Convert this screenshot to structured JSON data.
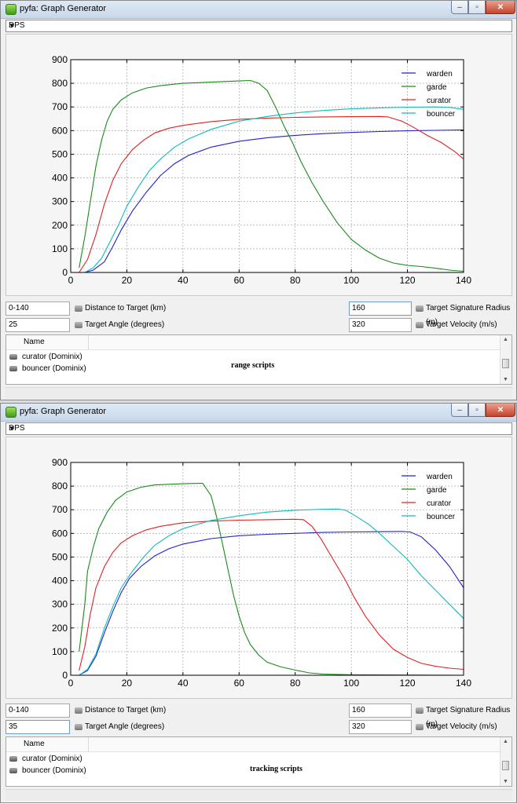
{
  "windows": [
    {
      "title": "pyfa: Graph Generator",
      "mode": "DPS",
      "distance_value": "0-140",
      "distance_label": "Distance to Target (km)",
      "angle_value": "25",
      "angle_label": "Target Angle (degrees)",
      "signature_value": "160",
      "signature_label": "Target Signature Radius (m)",
      "velocity_value": "320",
      "velocity_label": "Target Velocity (m/s)",
      "list_header": "Name",
      "fits": [
        "curator (Dominix)",
        "bouncer (Dominix)"
      ],
      "annotation": "range scripts",
      "focused_field": "signature",
      "chart_data": {
        "type": "line",
        "xlim": [
          0,
          140
        ],
        "ylim": [
          0,
          900
        ],
        "xticks": [
          0,
          20,
          40,
          60,
          80,
          100,
          120,
          140
        ],
        "yticks": [
          0,
          100,
          200,
          300,
          400,
          500,
          600,
          700,
          800,
          900
        ],
        "grid": true,
        "legend_position": "top-right",
        "series": [
          {
            "name": "warden",
            "color": "#2222cc",
            "points": [
              [
                5,
                0
              ],
              [
                8,
                10
              ],
              [
                12,
                45
              ],
              [
                15,
                110
              ],
              [
                18,
                180
              ],
              [
                22,
                260
              ],
              [
                27,
                340
              ],
              [
                32,
                410
              ],
              [
                37,
                460
              ],
              [
                42,
                495
              ],
              [
                50,
                530
              ],
              [
                60,
                555
              ],
              [
                70,
                570
              ],
              [
                80,
                580
              ],
              [
                90,
                587
              ],
              [
                100,
                592
              ],
              [
                110,
                596
              ],
              [
                120,
                599
              ],
              [
                130,
                601
              ],
              [
                140,
                603
              ]
            ]
          },
          {
            "name": "garde",
            "color": "#1a8a1a",
            "points": [
              [
                3,
                20
              ],
              [
                5,
                150
              ],
              [
                7,
                300
              ],
              [
                9,
                450
              ],
              [
                11,
                560
              ],
              [
                13,
                640
              ],
              [
                15,
                690
              ],
              [
                18,
                730
              ],
              [
                22,
                760
              ],
              [
                27,
                780
              ],
              [
                32,
                790
              ],
              [
                40,
                800
              ],
              [
                50,
                805
              ],
              [
                60,
                810
              ],
              [
                64,
                812
              ],
              [
                67,
                800
              ],
              [
                70,
                770
              ],
              [
                73,
                700
              ],
              [
                76,
                620
              ],
              [
                79,
                550
              ],
              [
                82,
                470
              ],
              [
                86,
                380
              ],
              [
                90,
                300
              ],
              [
                95,
                210
              ],
              [
                100,
                140
              ],
              [
                105,
                95
              ],
              [
                110,
                60
              ],
              [
                115,
                40
              ],
              [
                120,
                30
              ],
              [
                125,
                25
              ],
              [
                130,
                18
              ],
              [
                135,
                10
              ],
              [
                140,
                5
              ]
            ]
          },
          {
            "name": "curator",
            "color": "#dd2222",
            "points": [
              [
                3,
                0
              ],
              [
                6,
                55
              ],
              [
                9,
                160
              ],
              [
                12,
                290
              ],
              [
                15,
                390
              ],
              [
                18,
                460
              ],
              [
                22,
                520
              ],
              [
                26,
                560
              ],
              [
                30,
                590
              ],
              [
                35,
                610
              ],
              [
                40,
                622
              ],
              [
                50,
                638
              ],
              [
                60,
                648
              ],
              [
                70,
                653
              ],
              [
                80,
                656
              ],
              [
                90,
                658
              ],
              [
                100,
                659
              ],
              [
                110,
                660
              ],
              [
                113,
                658
              ],
              [
                118,
                640
              ],
              [
                122,
                615
              ],
              [
                127,
                580
              ],
              [
                132,
                550
              ],
              [
                137,
                510
              ],
              [
                140,
                480
              ]
            ]
          },
          {
            "name": "bouncer",
            "color": "#11bbbb",
            "points": [
              [
                5,
                0
              ],
              [
                8,
                20
              ],
              [
                11,
                60
              ],
              [
                14,
                130
              ],
              [
                17,
                200
              ],
              [
                20,
                280
              ],
              [
                24,
                360
              ],
              [
                28,
                430
              ],
              [
                32,
                480
              ],
              [
                37,
                530
              ],
              [
                42,
                565
              ],
              [
                50,
                605
              ],
              [
                60,
                640
              ],
              [
                70,
                660
              ],
              [
                80,
                675
              ],
              [
                90,
                685
              ],
              [
                100,
                692
              ],
              [
                110,
                696
              ],
              [
                120,
                699
              ],
              [
                130,
                700
              ],
              [
                135,
                698
              ],
              [
                140,
                690
              ]
            ]
          }
        ]
      }
    },
    {
      "title": "pyfa: Graph Generator",
      "mode": "DPS",
      "distance_value": "0-140",
      "distance_label": "Distance to Target (km)",
      "angle_value": "35",
      "angle_label": "Target Angle (degrees)",
      "signature_value": "160",
      "signature_label": "Target Signature Radius (m)",
      "velocity_value": "320",
      "velocity_label": "Target Velocity (m/s)",
      "list_header": "Name",
      "fits": [
        "curator (Dominix)",
        "bouncer (Dominix)"
      ],
      "annotation": "tracking scripts",
      "focused_field": "angle",
      "chart_data": {
        "type": "line",
        "xlim": [
          0,
          140
        ],
        "ylim": [
          0,
          900
        ],
        "xticks": [
          0,
          20,
          40,
          60,
          80,
          100,
          120,
          140
        ],
        "yticks": [
          0,
          100,
          200,
          300,
          400,
          500,
          600,
          700,
          800,
          900
        ],
        "grid": true,
        "legend_position": "top-right",
        "series": [
          {
            "name": "warden",
            "color": "#2222cc",
            "points": [
              [
                3,
                0
              ],
              [
                6,
                20
              ],
              [
                9,
                80
              ],
              [
                12,
                180
              ],
              [
                15,
                270
              ],
              [
                18,
                350
              ],
              [
                21,
                410
              ],
              [
                25,
                460
              ],
              [
                30,
                505
              ],
              [
                35,
                535
              ],
              [
                40,
                555
              ],
              [
                50,
                578
              ],
              [
                60,
                590
              ],
              [
                70,
                596
              ],
              [
                80,
                600
              ],
              [
                90,
                604
              ],
              [
                100,
                606
              ],
              [
                110,
                607
              ],
              [
                118,
                608
              ],
              [
                121,
                606
              ],
              [
                125,
                585
              ],
              [
                130,
                530
              ],
              [
                135,
                460
              ],
              [
                140,
                370
              ]
            ]
          },
          {
            "name": "garde",
            "color": "#1a8a1a",
            "points": [
              [
                3,
                100
              ],
              [
                5,
                300
              ],
              [
                6,
                440
              ],
              [
                8,
                540
              ],
              [
                10,
                620
              ],
              [
                13,
                690
              ],
              [
                16,
                740
              ],
              [
                20,
                775
              ],
              [
                25,
                795
              ],
              [
                30,
                805
              ],
              [
                40,
                810
              ],
              [
                47,
                812
              ],
              [
                50,
                760
              ],
              [
                52,
                670
              ],
              [
                54,
                560
              ],
              [
                56,
                450
              ],
              [
                58,
                340
              ],
              [
                60,
                250
              ],
              [
                62,
                180
              ],
              [
                64,
                130
              ],
              [
                67,
                85
              ],
              [
                70,
                55
              ],
              [
                75,
                35
              ],
              [
                80,
                22
              ],
              [
                85,
                10
              ],
              [
                90,
                5
              ],
              [
                100,
                2
              ],
              [
                140,
                0
              ]
            ]
          },
          {
            "name": "curator",
            "color": "#dd2222",
            "points": [
              [
                3,
                20
              ],
              [
                5,
                120
              ],
              [
                7,
                260
              ],
              [
                9,
                370
              ],
              [
                12,
                460
              ],
              [
                15,
                520
              ],
              [
                18,
                560
              ],
              [
                22,
                590
              ],
              [
                27,
                615
              ],
              [
                32,
                630
              ],
              [
                40,
                645
              ],
              [
                50,
                652
              ],
              [
                60,
                656
              ],
              [
                70,
                658
              ],
              [
                80,
                660
              ],
              [
                83,
                658
              ],
              [
                86,
                630
              ],
              [
                89,
                580
              ],
              [
                92,
                520
              ],
              [
                95,
                460
              ],
              [
                98,
                400
              ],
              [
                101,
                330
              ],
              [
                105,
                250
              ],
              [
                110,
                170
              ],
              [
                115,
                110
              ],
              [
                120,
                75
              ],
              [
                125,
                50
              ],
              [
                130,
                38
              ],
              [
                135,
                30
              ],
              [
                140,
                25
              ]
            ]
          },
          {
            "name": "bouncer",
            "color": "#11bbbb",
            "points": [
              [
                3,
                0
              ],
              [
                6,
                25
              ],
              [
                9,
                90
              ],
              [
                12,
                200
              ],
              [
                15,
                290
              ],
              [
                18,
                370
              ],
              [
                22,
                440
              ],
              [
                26,
                500
              ],
              [
                30,
                550
              ],
              [
                35,
                590
              ],
              [
                40,
                620
              ],
              [
                50,
                655
              ],
              [
                60,
                675
              ],
              [
                70,
                690
              ],
              [
                80,
                698
              ],
              [
                90,
                702
              ],
              [
                95,
                703
              ],
              [
                98,
                698
              ],
              [
                102,
                670
              ],
              [
                106,
                640
              ],
              [
                110,
                600
              ],
              [
                115,
                545
              ],
              [
                120,
                490
              ],
              [
                125,
                420
              ],
              [
                130,
                360
              ],
              [
                135,
                300
              ],
              [
                140,
                240
              ]
            ]
          }
        ]
      }
    }
  ]
}
